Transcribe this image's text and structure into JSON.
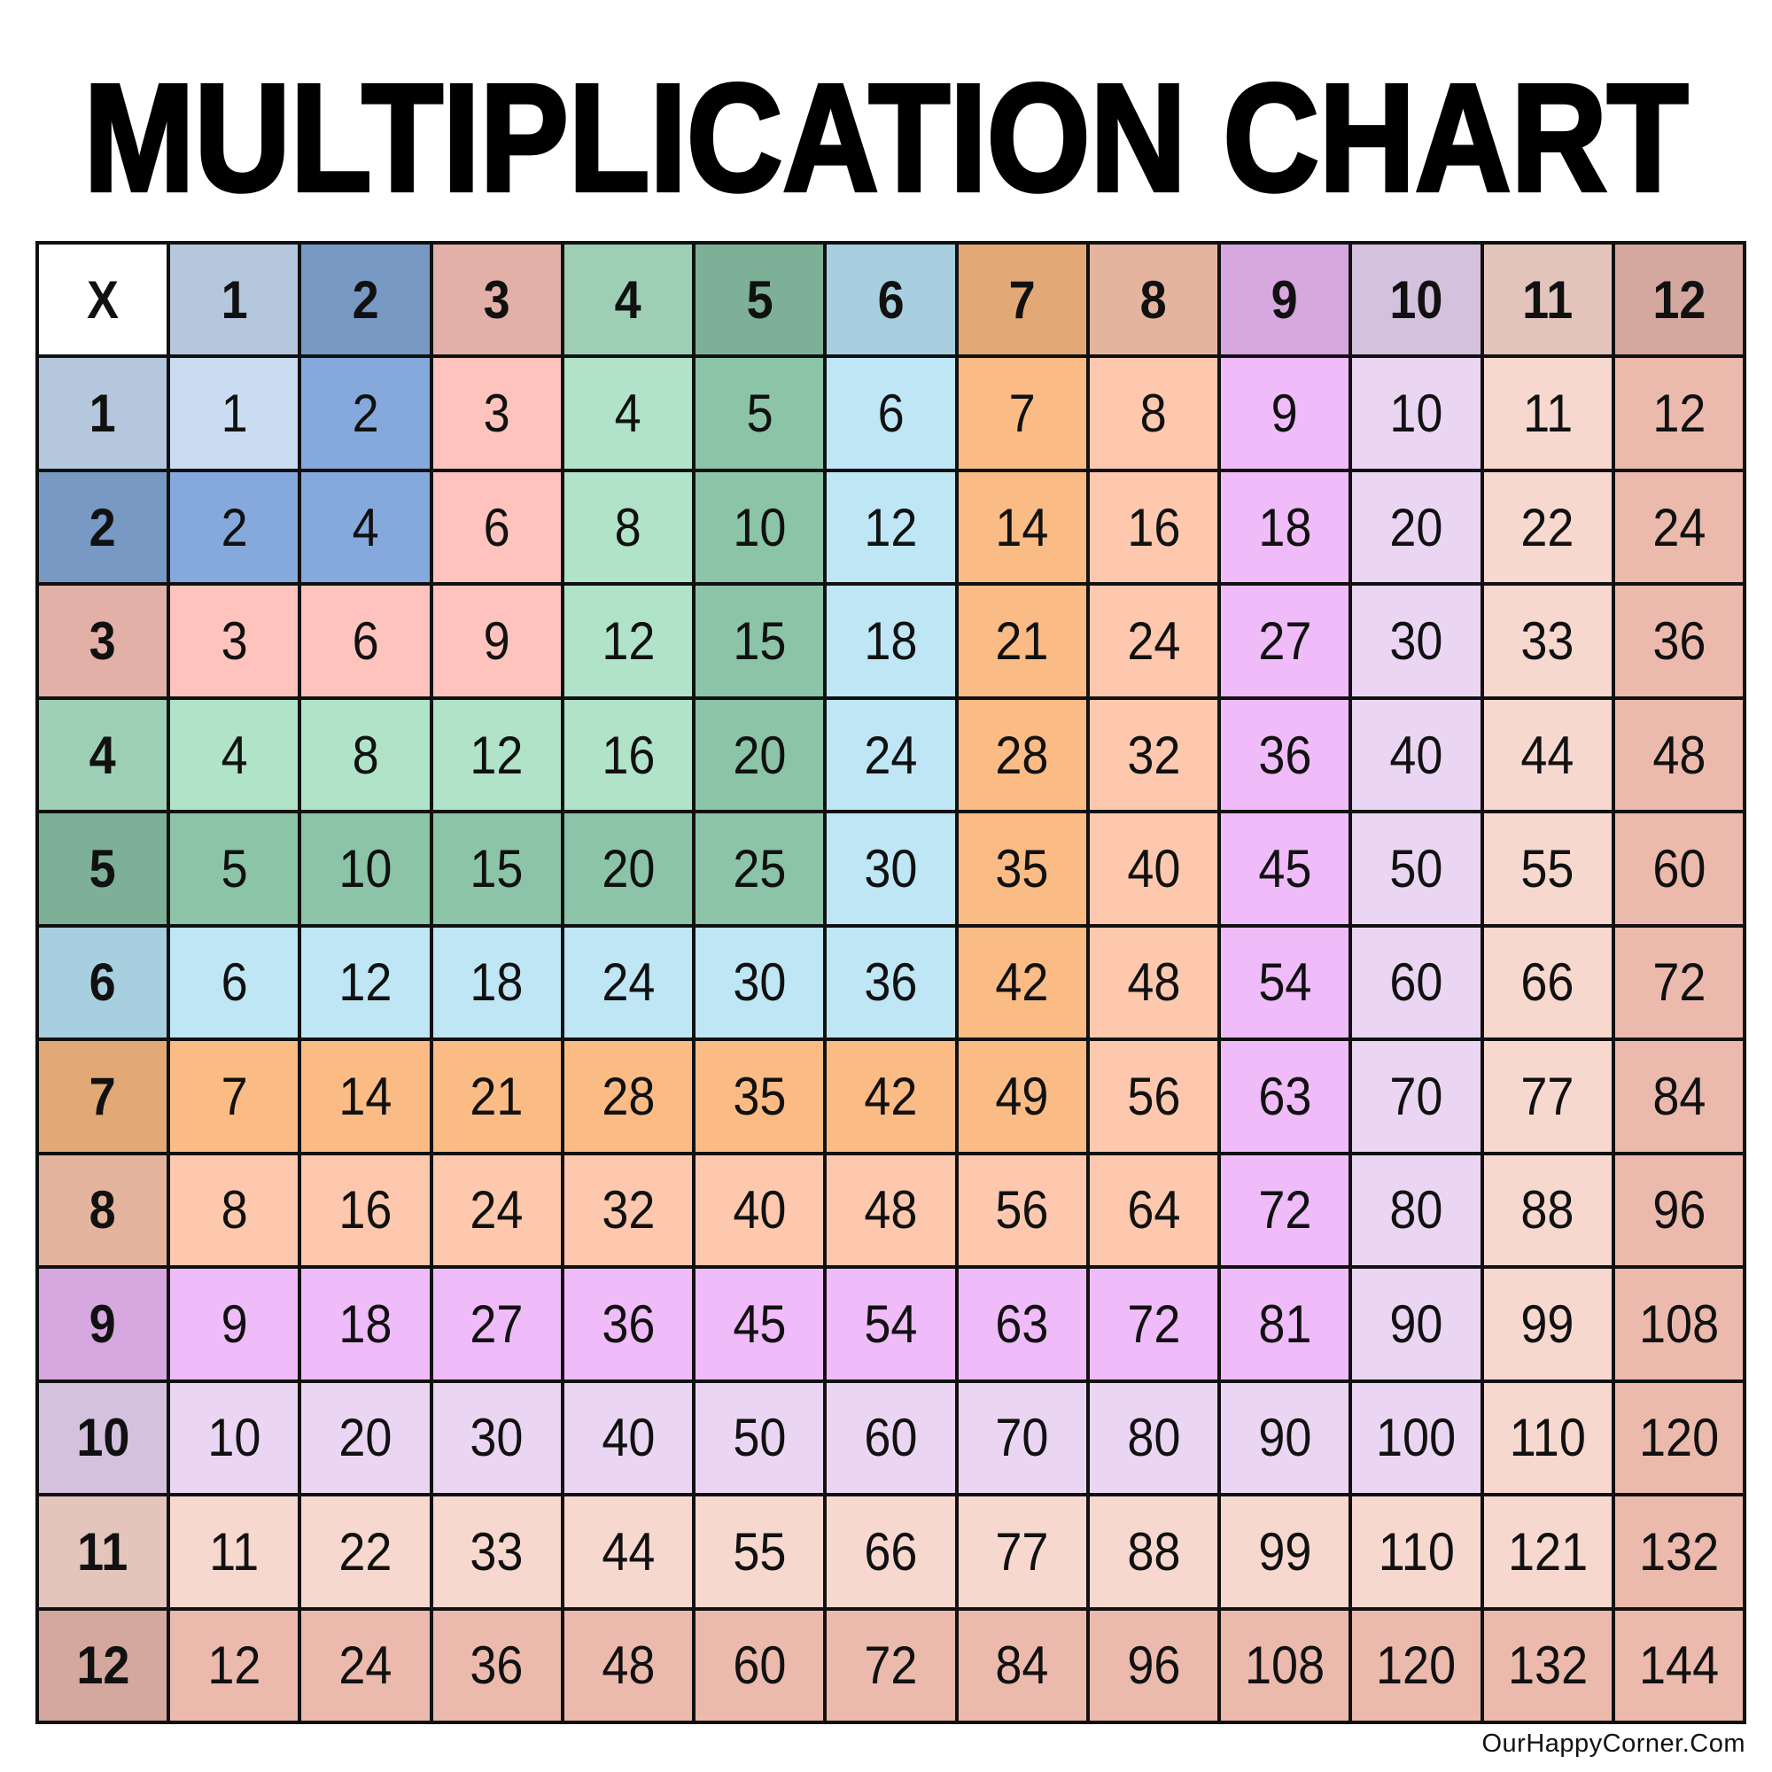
{
  "title": "MULTIPLICATION CHART",
  "corner": "X",
  "credit": "OurHappyCorner.Com",
  "headers": [
    1,
    2,
    3,
    4,
    5,
    6,
    7,
    8,
    9,
    10,
    11,
    12
  ],
  "rows": [
    [
      1,
      2,
      3,
      4,
      5,
      6,
      7,
      8,
      9,
      10,
      11,
      12
    ],
    [
      2,
      4,
      6,
      8,
      10,
      12,
      14,
      16,
      18,
      20,
      22,
      24
    ],
    [
      3,
      6,
      9,
      12,
      15,
      18,
      21,
      24,
      27,
      30,
      33,
      36
    ],
    [
      4,
      8,
      12,
      16,
      20,
      24,
      28,
      32,
      36,
      40,
      44,
      48
    ],
    [
      5,
      10,
      15,
      20,
      25,
      30,
      35,
      40,
      45,
      50,
      55,
      60
    ],
    [
      6,
      12,
      18,
      24,
      30,
      36,
      42,
      48,
      54,
      60,
      66,
      72
    ],
    [
      7,
      14,
      21,
      28,
      35,
      42,
      49,
      56,
      63,
      70,
      77,
      84
    ],
    [
      8,
      16,
      24,
      32,
      40,
      48,
      56,
      64,
      72,
      80,
      88,
      96
    ],
    [
      9,
      18,
      27,
      36,
      45,
      54,
      63,
      72,
      81,
      90,
      99,
      108
    ],
    [
      10,
      20,
      30,
      40,
      50,
      60,
      70,
      80,
      90,
      100,
      110,
      120
    ],
    [
      11,
      22,
      33,
      44,
      55,
      66,
      77,
      88,
      99,
      110,
      121,
      132
    ],
    [
      12,
      24,
      36,
      48,
      60,
      72,
      84,
      96,
      108,
      120,
      132,
      144
    ]
  ],
  "colors": {
    "header": [
      "#b4c7dc",
      "#7799c4",
      "#e3b0a8",
      "#9ecfb4",
      "#7db096",
      "#a8cfe0",
      "#e2a976",
      "#e5b49e",
      "#d7a7e0",
      "#d4c1dd",
      "#e3c5bc",
      "#d4a89e"
    ],
    "body": [
      "#c9dcf2",
      "#85a9dc",
      "#fdc3bc",
      "#b0e3c8",
      "#8bc4a6",
      "#bee6f5",
      "#fbbb84",
      "#fdc8ad",
      "#efbbf9",
      "#ead6f2",
      "#f7d8cf",
      "#ebbaad"
    ],
    "corner": "#ffffff"
  }
}
